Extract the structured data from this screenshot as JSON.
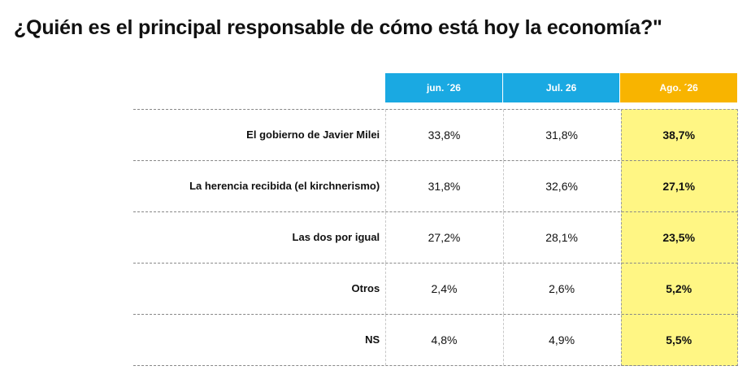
{
  "chart_data": {
    "type": "table",
    "title": "¿Quién es el principal responsable de cómo está hoy la economía?\"",
    "columns": [
      "jun. ´26",
      "Jul. 26",
      "Ago. ´26"
    ],
    "rows": [
      {
        "label": "El gobierno de Javier Milei",
        "values": [
          "33,8%",
          "31,8%",
          "38,7%"
        ]
      },
      {
        "label": "La herencia recibida (el kirchnerismo)",
        "values": [
          "31,8%",
          "32,6%",
          "27,1%"
        ]
      },
      {
        "label": "Las dos por igual",
        "values": [
          "27,2%",
          "28,1%",
          "23,5%"
        ]
      },
      {
        "label": "Otros",
        "values": [
          "2,4%",
          "2,6%",
          "5,2%"
        ]
      },
      {
        "label": "NS",
        "values": [
          "4,8%",
          "4,9%",
          "5,5%"
        ]
      }
    ],
    "highlight_column": 2,
    "colors": {
      "header_blue": "#1aa9e2",
      "header_highlight": "#f8b400",
      "highlight_fill": "#fff684"
    }
  }
}
